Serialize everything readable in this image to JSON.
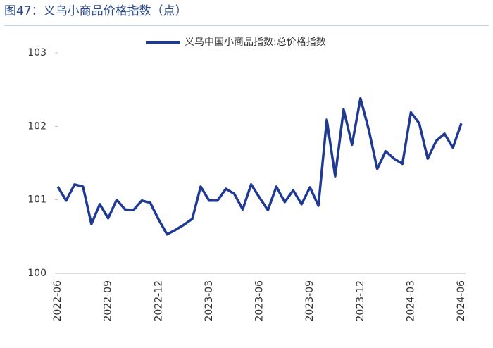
{
  "chart_data": {
    "type": "line",
    "title": "图47：义乌小商品价格指数（点）",
    "categories": [
      "2022-06",
      null,
      null,
      null,
      null,
      null,
      "2022-09",
      null,
      null,
      null,
      null,
      null,
      "2022-12",
      null,
      null,
      null,
      null,
      null,
      "2023-03",
      null,
      null,
      null,
      null,
      null,
      "2023-06",
      null,
      null,
      null,
      null,
      null,
      "2023-09",
      null,
      null,
      null,
      null,
      null,
      "2023-12",
      null,
      null,
      null,
      null,
      null,
      "2024-03",
      null,
      null,
      null,
      null,
      null,
      "2024-06"
    ],
    "series": [
      {
        "name": "义乌中国小商品指数:总价格指数",
        "color": "#1f3a93",
        "values": [
          101.18,
          100.99,
          101.21,
          101.18,
          100.67,
          100.94,
          100.75,
          101.0,
          100.87,
          100.86,
          100.99,
          100.96,
          100.73,
          100.53,
          100.59,
          100.66,
          100.74,
          101.18,
          100.99,
          100.99,
          101.15,
          101.08,
          100.87,
          101.21,
          101.03,
          100.86,
          101.18,
          100.97,
          101.13,
          100.94,
          101.17,
          100.92,
          102.09,
          101.32,
          102.23,
          101.75,
          102.38,
          101.95,
          101.42,
          101.66,
          101.56,
          101.49,
          102.19,
          102.04,
          101.56,
          101.8,
          101.9,
          101.71,
          102.04
        ]
      }
    ],
    "ylim": [
      100,
      103
    ],
    "yticks": [
      100,
      101,
      102,
      103
    ],
    "legend": "top"
  }
}
